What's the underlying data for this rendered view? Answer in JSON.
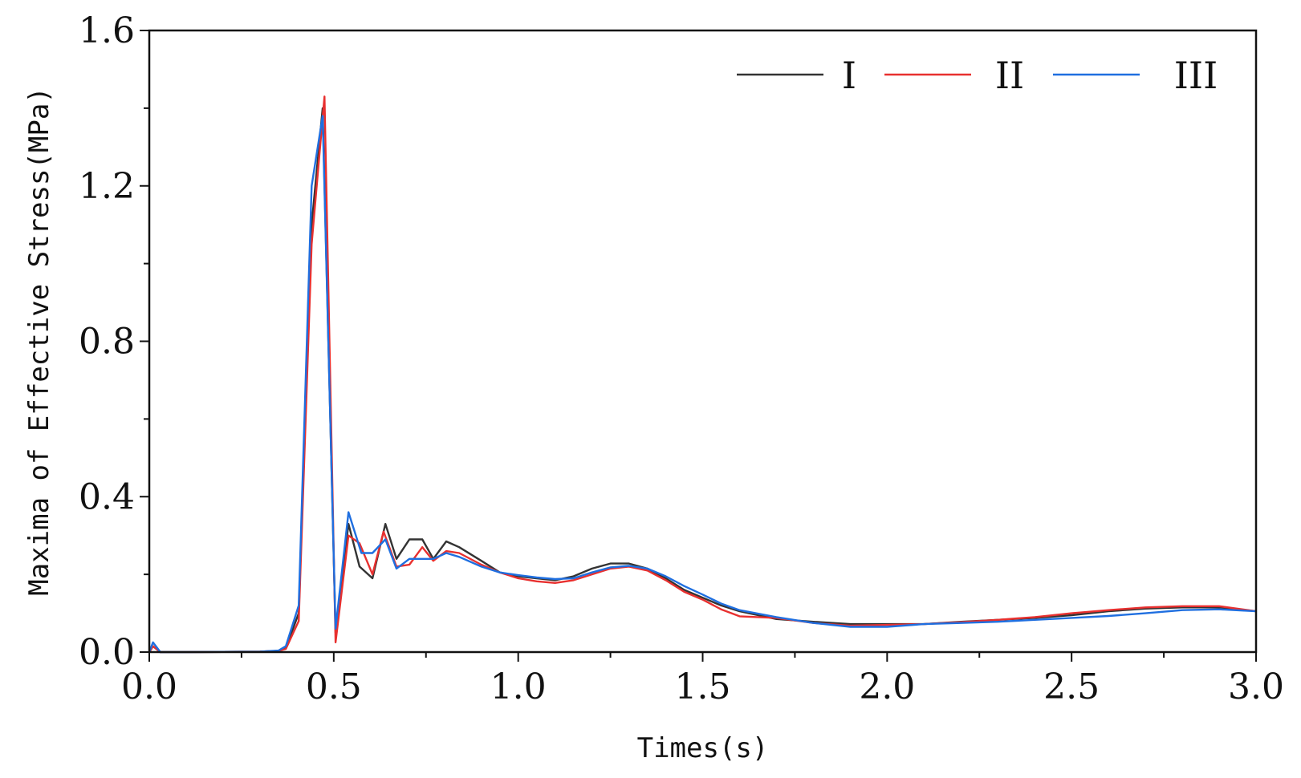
{
  "chart_data": {
    "type": "line",
    "title": "",
    "xlabel": "Times(s)",
    "ylabel": "Maxima of Effective Stress(MPa)",
    "xlim": [
      0.0,
      3.0
    ],
    "ylim": [
      0.0,
      1.6
    ],
    "xticks": [
      "0.0",
      "0.5",
      "1.0",
      "1.5",
      "2.0",
      "2.5",
      "3.0"
    ],
    "yticks": [
      "0.0",
      "0.4",
      "0.8",
      "1.2",
      "1.6"
    ],
    "legend_position": "top-right",
    "grid": false,
    "series": [
      {
        "name": "I",
        "color": "#333333",
        "points": [
          [
            0.0,
            0.0
          ],
          [
            0.01,
            0.015
          ],
          [
            0.03,
            0.0
          ],
          [
            0.1,
            0.0
          ],
          [
            0.3,
            0.001
          ],
          [
            0.35,
            0.003
          ],
          [
            0.37,
            0.01
          ],
          [
            0.405,
            0.1
          ],
          [
            0.44,
            1.1
          ],
          [
            0.47,
            1.4
          ],
          [
            0.505,
            0.05
          ],
          [
            0.54,
            0.33
          ],
          [
            0.57,
            0.22
          ],
          [
            0.605,
            0.19
          ],
          [
            0.64,
            0.33
          ],
          [
            0.67,
            0.24
          ],
          [
            0.705,
            0.29
          ],
          [
            0.74,
            0.29
          ],
          [
            0.77,
            0.24
          ],
          [
            0.805,
            0.285
          ],
          [
            0.84,
            0.27
          ],
          [
            0.9,
            0.235
          ],
          [
            0.95,
            0.205
          ],
          [
            1.0,
            0.195
          ],
          [
            1.05,
            0.19
          ],
          [
            1.1,
            0.185
          ],
          [
            1.15,
            0.195
          ],
          [
            1.2,
            0.215
          ],
          [
            1.25,
            0.228
          ],
          [
            1.3,
            0.228
          ],
          [
            1.35,
            0.215
          ],
          [
            1.4,
            0.19
          ],
          [
            1.45,
            0.16
          ],
          [
            1.5,
            0.14
          ],
          [
            1.55,
            0.12
          ],
          [
            1.6,
            0.105
          ],
          [
            1.7,
            0.085
          ],
          [
            1.8,
            0.078
          ],
          [
            1.9,
            0.072
          ],
          [
            2.0,
            0.072
          ],
          [
            2.1,
            0.072
          ],
          [
            2.2,
            0.078
          ],
          [
            2.3,
            0.083
          ],
          [
            2.4,
            0.088
          ],
          [
            2.5,
            0.095
          ],
          [
            2.6,
            0.105
          ],
          [
            2.7,
            0.112
          ],
          [
            2.8,
            0.115
          ],
          [
            2.9,
            0.115
          ],
          [
            3.0,
            0.105
          ]
        ]
      },
      {
        "name": "II",
        "color": "#e8302f",
        "points": [
          [
            0.0,
            0.0
          ],
          [
            0.01,
            0.015
          ],
          [
            0.03,
            0.0
          ],
          [
            0.1,
            0.0
          ],
          [
            0.3,
            0.001
          ],
          [
            0.35,
            0.003
          ],
          [
            0.37,
            0.008
          ],
          [
            0.405,
            0.08
          ],
          [
            0.44,
            1.05
          ],
          [
            0.475,
            1.43
          ],
          [
            0.505,
            0.025
          ],
          [
            0.54,
            0.3
          ],
          [
            0.57,
            0.28
          ],
          [
            0.605,
            0.2
          ],
          [
            0.635,
            0.31
          ],
          [
            0.67,
            0.22
          ],
          [
            0.705,
            0.225
          ],
          [
            0.74,
            0.27
          ],
          [
            0.77,
            0.235
          ],
          [
            0.805,
            0.26
          ],
          [
            0.84,
            0.255
          ],
          [
            0.9,
            0.225
          ],
          [
            0.95,
            0.205
          ],
          [
            1.0,
            0.19
          ],
          [
            1.05,
            0.182
          ],
          [
            1.1,
            0.178
          ],
          [
            1.15,
            0.185
          ],
          [
            1.2,
            0.2
          ],
          [
            1.25,
            0.215
          ],
          [
            1.3,
            0.22
          ],
          [
            1.35,
            0.21
          ],
          [
            1.4,
            0.185
          ],
          [
            1.45,
            0.155
          ],
          [
            1.5,
            0.135
          ],
          [
            1.55,
            0.11
          ],
          [
            1.6,
            0.092
          ],
          [
            1.7,
            0.088
          ],
          [
            1.8,
            0.075
          ],
          [
            1.9,
            0.068
          ],
          [
            2.0,
            0.07
          ],
          [
            2.1,
            0.072
          ],
          [
            2.2,
            0.077
          ],
          [
            2.3,
            0.083
          ],
          [
            2.4,
            0.09
          ],
          [
            2.5,
            0.1
          ],
          [
            2.6,
            0.108
          ],
          [
            2.7,
            0.115
          ],
          [
            2.8,
            0.118
          ],
          [
            2.9,
            0.118
          ],
          [
            3.0,
            0.105
          ]
        ]
      },
      {
        "name": "III",
        "color": "#1f6fe0",
        "points": [
          [
            0.0,
            0.0
          ],
          [
            0.01,
            0.025
          ],
          [
            0.03,
            0.0
          ],
          [
            0.1,
            0.0
          ],
          [
            0.3,
            0.001
          ],
          [
            0.35,
            0.004
          ],
          [
            0.37,
            0.015
          ],
          [
            0.405,
            0.12
          ],
          [
            0.44,
            1.2
          ],
          [
            0.47,
            1.38
          ],
          [
            0.505,
            0.06
          ],
          [
            0.54,
            0.36
          ],
          [
            0.575,
            0.255
          ],
          [
            0.605,
            0.255
          ],
          [
            0.64,
            0.29
          ],
          [
            0.67,
            0.215
          ],
          [
            0.705,
            0.24
          ],
          [
            0.74,
            0.24
          ],
          [
            0.77,
            0.24
          ],
          [
            0.805,
            0.255
          ],
          [
            0.84,
            0.245
          ],
          [
            0.9,
            0.22
          ],
          [
            0.95,
            0.205
          ],
          [
            1.0,
            0.198
          ],
          [
            1.05,
            0.192
          ],
          [
            1.1,
            0.188
          ],
          [
            1.15,
            0.19
          ],
          [
            1.2,
            0.205
          ],
          [
            1.25,
            0.218
          ],
          [
            1.3,
            0.222
          ],
          [
            1.35,
            0.215
          ],
          [
            1.4,
            0.195
          ],
          [
            1.45,
            0.17
          ],
          [
            1.5,
            0.148
          ],
          [
            1.55,
            0.125
          ],
          [
            1.6,
            0.108
          ],
          [
            1.7,
            0.09
          ],
          [
            1.8,
            0.075
          ],
          [
            1.9,
            0.065
          ],
          [
            2.0,
            0.065
          ],
          [
            2.1,
            0.072
          ],
          [
            2.2,
            0.075
          ],
          [
            2.3,
            0.078
          ],
          [
            2.4,
            0.083
          ],
          [
            2.5,
            0.088
          ],
          [
            2.6,
            0.093
          ],
          [
            2.7,
            0.1
          ],
          [
            2.8,
            0.108
          ],
          [
            2.9,
            0.11
          ],
          [
            3.0,
            0.105
          ]
        ]
      }
    ]
  }
}
